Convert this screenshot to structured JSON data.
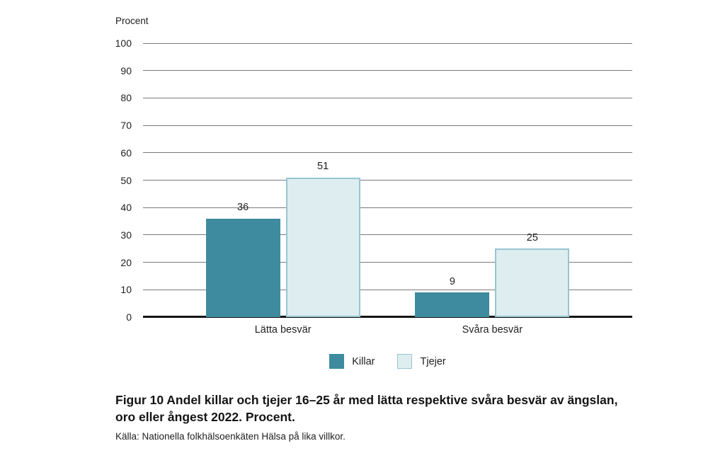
{
  "page": {
    "background": "#ffffff"
  },
  "chart_data": {
    "type": "bar",
    "axis_title": "Procent",
    "categories": [
      "Lätta besvär",
      "Svåra besvär"
    ],
    "series": [
      {
        "name": "Killar",
        "values": [
          36,
          9
        ],
        "color": "#3e8b9f"
      },
      {
        "name": "Tjejer",
        "values": [
          51,
          25
        ],
        "color": "#deedf0",
        "border_color": "#97c5d0"
      }
    ],
    "ylim": [
      0,
      100
    ],
    "ytick_step": 10,
    "grid": true,
    "gridline_color": "#7b7b7b",
    "axis_color": "#141414",
    "legend_position": "bottom",
    "value_labels": [
      36,
      51,
      9,
      25
    ]
  },
  "caption": {
    "figure_label": "Figur 10",
    "text": "Andel killar och tjejer 16–25 år med lätta respektive svåra besvär av ängslan, oro eller ångest 2022. Procent.",
    "source": "Källa: Nationella folkhälsoenkäten Hälsa på lika villkor."
  }
}
